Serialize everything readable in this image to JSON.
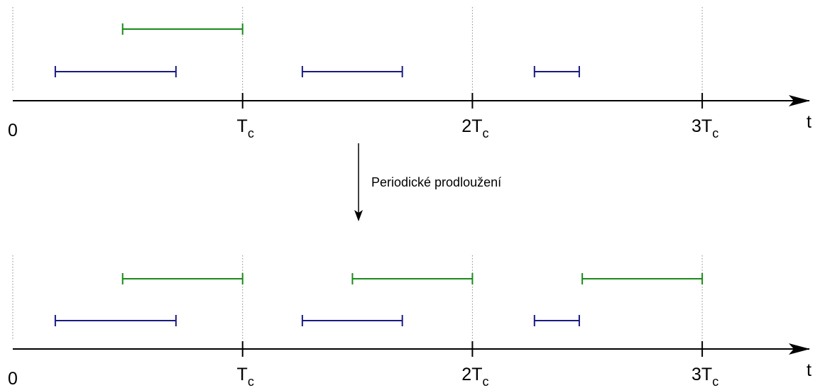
{
  "colors": {
    "green": "#1a8a1a",
    "blue": "#1a1a80",
    "axis": "#000000",
    "grid": "#888888"
  },
  "timeline": {
    "axis_label": "t",
    "ticks": [
      {
        "main": "0",
        "sub": ""
      },
      {
        "main": "T",
        "sub": "c"
      },
      {
        "main": "2T",
        "sub": "c"
      },
      {
        "main": "3T",
        "sub": "c"
      }
    ]
  },
  "transition": {
    "label": "Periodické prodloužení"
  },
  "diagrams": [
    {
      "green": [
        [
          0.478,
          1.0
        ]
      ],
      "blue": [
        [
          0.185,
          0.71
        ],
        [
          1.26,
          1.695
        ],
        [
          2.27,
          2.465
        ]
      ]
    },
    {
      "green": [
        [
          0.478,
          1.0
        ],
        [
          1.478,
          2.0
        ],
        [
          2.478,
          3.0
        ]
      ],
      "blue": [
        [
          0.185,
          0.71
        ],
        [
          1.26,
          1.695
        ],
        [
          2.27,
          2.465
        ]
      ]
    }
  ]
}
